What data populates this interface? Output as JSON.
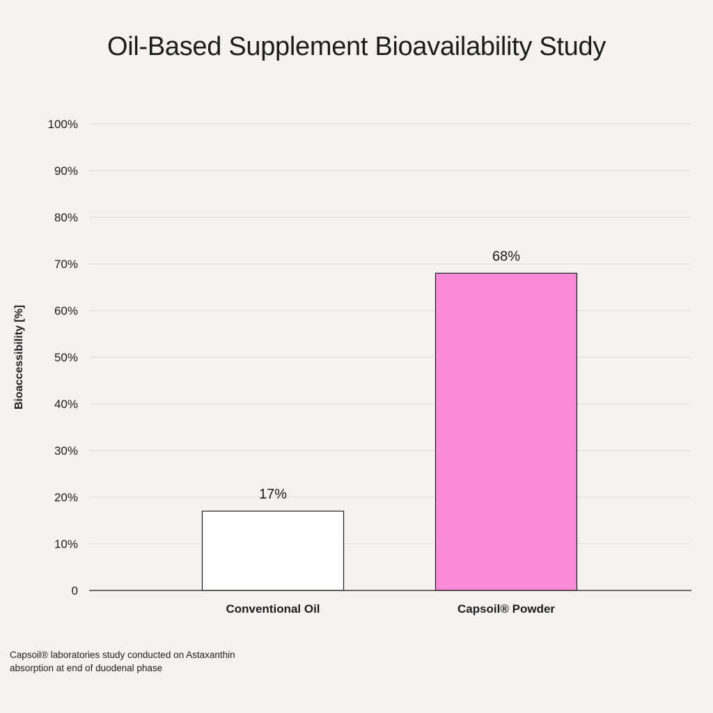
{
  "chart_data": {
    "type": "bar",
    "title": "Oil-Based Supplement Bioavailability Study",
    "categories": [
      "Conventional Oil",
      "Capsoil® Powder"
    ],
    "values": [
      17,
      68
    ],
    "value_labels": [
      "17%",
      "68%"
    ],
    "ylabel": "Bioaccessibility [%]",
    "xlabel": "",
    "ylim": [
      0,
      100
    ],
    "y_ticks": [
      {
        "value": 0,
        "label": "0"
      },
      {
        "value": 10,
        "label": "10%"
      },
      {
        "value": 20,
        "label": "20%"
      },
      {
        "value": 30,
        "label": "30%"
      },
      {
        "value": 40,
        "label": "40%"
      },
      {
        "value": 50,
        "label": "50%"
      },
      {
        "value": 60,
        "label": "60%"
      },
      {
        "value": 70,
        "label": "70%"
      },
      {
        "value": 80,
        "label": "80%"
      },
      {
        "value": 90,
        "label": "90%"
      },
      {
        "value": 100,
        "label": "100%"
      }
    ],
    "grid": true,
    "legend": "none",
    "bar_colors": [
      "#ffffff",
      "#f98bd9"
    ],
    "bar_outline": "#1c1c1c",
    "grid_color": "#dcd8d3"
  },
  "footnote": {
    "line1": "Capsoil® laboratories study conducted on Astaxanthin",
    "line2": "absorption at end of duodenal phase"
  }
}
